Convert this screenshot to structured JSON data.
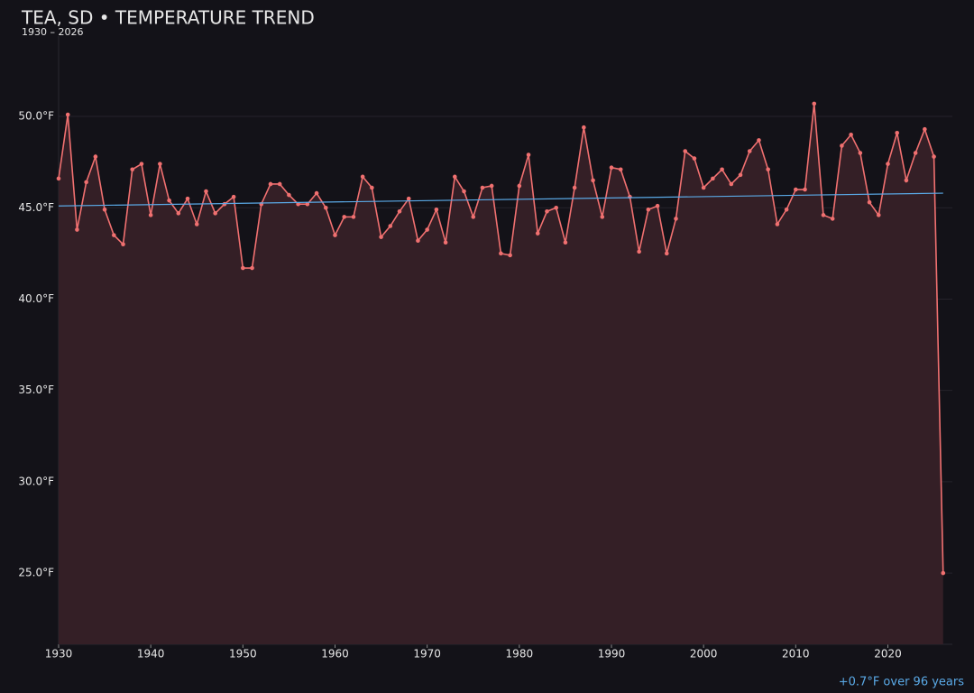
{
  "chart_data": {
    "type": "line",
    "title": "TEA, SD • TEMPERATURE TREND",
    "subtitle": "1930 – 2026",
    "note": "+0.7°F over 96 years",
    "x": [
      1930,
      1931,
      1932,
      1933,
      1934,
      1935,
      1936,
      1937,
      1938,
      1939,
      1940,
      1941,
      1942,
      1943,
      1944,
      1945,
      1946,
      1947,
      1948,
      1949,
      1950,
      1951,
      1952,
      1953,
      1954,
      1955,
      1956,
      1957,
      1958,
      1959,
      1960,
      1961,
      1962,
      1963,
      1964,
      1965,
      1966,
      1967,
      1968,
      1969,
      1970,
      1971,
      1972,
      1973,
      1974,
      1975,
      1976,
      1977,
      1978,
      1979,
      1980,
      1981,
      1982,
      1983,
      1984,
      1985,
      1986,
      1987,
      1988,
      1989,
      1990,
      1991,
      1992,
      1993,
      1994,
      1995,
      1996,
      1997,
      1998,
      1999,
      2000,
      2001,
      2002,
      2003,
      2004,
      2005,
      2006,
      2007,
      2008,
      2009,
      2010,
      2011,
      2012,
      2013,
      2014,
      2015,
      2016,
      2017,
      2018,
      2019,
      2020,
      2021,
      2022,
      2023,
      2024,
      2025,
      2026
    ],
    "series": [
      {
        "color": "#f07070",
        "fill": "#341f26",
        "values": [
          46.6,
          50.1,
          43.8,
          46.4,
          47.8,
          44.9,
          43.5,
          43.0,
          47.1,
          47.4,
          44.6,
          47.4,
          45.4,
          44.7,
          45.5,
          44.1,
          45.9,
          44.7,
          45.2,
          45.6,
          41.7,
          41.7,
          45.2,
          46.3,
          46.3,
          45.7,
          45.2,
          45.2,
          45.8,
          45.0,
          43.5,
          44.5,
          44.5,
          46.7,
          46.1,
          43.4,
          44.0,
          44.8,
          45.5,
          43.2,
          43.8,
          44.9,
          43.1,
          46.7,
          45.9,
          44.5,
          46.1,
          46.2,
          42.5,
          42.4,
          46.2,
          47.9,
          43.6,
          44.8,
          45.0,
          43.1,
          46.1,
          49.4,
          46.5,
          44.5,
          47.2,
          47.1,
          45.6,
          42.6,
          44.9,
          45.1,
          42.5,
          44.4,
          48.1,
          47.7,
          46.1,
          46.6,
          47.1,
          46.3,
          46.8,
          48.1,
          48.7,
          47.1,
          44.1,
          44.9,
          46.0,
          46.0,
          50.7,
          44.6,
          44.4,
          48.4,
          49.0,
          48.0,
          45.3,
          44.6,
          47.4,
          49.1,
          46.5,
          48.0,
          49.3,
          47.8,
          25.0
        ]
      }
    ],
    "trend": {
      "x": [
        1930,
        2026
      ],
      "values": [
        45.1,
        45.8
      ],
      "color": "#5aa9e6"
    },
    "xlim": [
      1930,
      2027
    ],
    "ylim": [
      21.1,
      54.4
    ],
    "xticks": [
      1930,
      1940,
      1950,
      1960,
      1970,
      1980,
      1990,
      2000,
      2010,
      2020
    ],
    "yticks": [
      {
        "value": 25,
        "label": "25.0°F"
      },
      {
        "value": 30,
        "label": "30.0°F"
      },
      {
        "value": 35,
        "label": "35.0°F"
      },
      {
        "value": 40,
        "label": "40.0°F"
      },
      {
        "value": 45,
        "label": "45.0°F"
      },
      {
        "value": 50,
        "label": "50.0°F"
      }
    ],
    "grid": true
  }
}
